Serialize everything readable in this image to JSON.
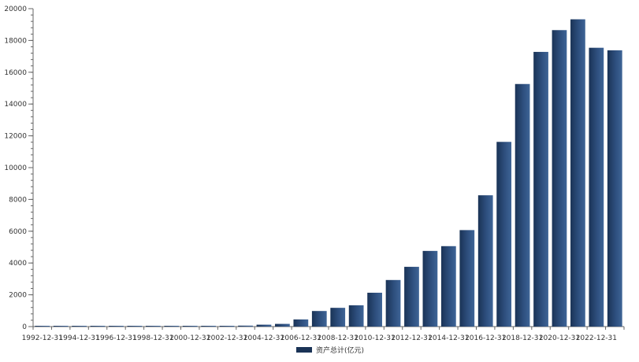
{
  "chart_data": {
    "type": "bar",
    "categories": [
      "1992-12-31",
      "1993-12-31",
      "1994-12-31",
      "1995-12-31",
      "1996-12-31",
      "1997-12-31",
      "1998-12-31",
      "1999-12-31",
      "2000-12-31",
      "2001-12-31",
      "2002-12-31",
      "2003-12-31",
      "2004-12-31",
      "2005-12-31",
      "2006-12-31",
      "2007-12-31",
      "2008-12-31",
      "2009-12-31",
      "2010-12-31",
      "2011-12-31",
      "2012-12-31",
      "2013-12-31",
      "2014-12-31",
      "2015-12-31",
      "2016-12-31",
      "2017-12-31",
      "2018-12-31",
      "2019-12-31",
      "2020-12-31",
      "2021-12-31",
      "2022-12-31",
      "2023-12-31"
    ],
    "series": [
      {
        "name": "资产总计(亿元)",
        "values": [
          30,
          30,
          30,
          30,
          30,
          30,
          30,
          30,
          30,
          30,
          40,
          60,
          120,
          170,
          450,
          980,
          1180,
          1340,
          2130,
          2930,
          3760,
          4760,
          5060,
          6070,
          8260,
          11620,
          15260,
          17280,
          18650,
          19330,
          17540,
          17380
        ]
      }
    ],
    "ylim": [
      0,
      20000
    ],
    "yticks": [
      0,
      2000,
      4000,
      6000,
      8000,
      10000,
      12000,
      14000,
      16000,
      18000,
      20000
    ],
    "xtick_labels": [
      "1992-12-31",
      "1994-12-31",
      "1996-12-31",
      "1998-12-31",
      "2000-12-31",
      "2002-12-31",
      "2004-12-31",
      "2006-12-31",
      "2008-12-31",
      "2010-12-31",
      "2012-12-31",
      "2014-12-31",
      "2016-12-31",
      "2018-12-31",
      "2020-12-31",
      "2022-12-31"
    ],
    "xlabel": "",
    "ylabel": "",
    "title": "",
    "grid": false,
    "legend_position": "bottom-center",
    "colors": {
      "bar_dark": "#1a3356",
      "bar_light": "#3e6496",
      "axis": "#666666",
      "text": "#333333"
    }
  }
}
